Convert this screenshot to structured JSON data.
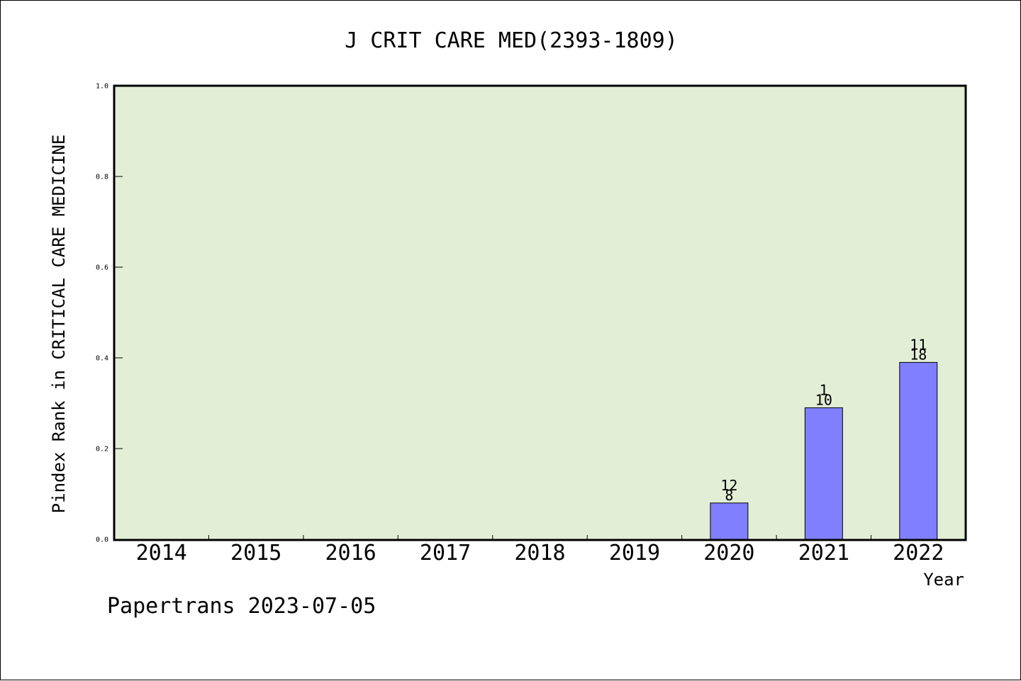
{
  "chart_data": {
    "type": "bar",
    "title": "J CRIT CARE MED(2393-1809)",
    "xlabel": "Year",
    "ylabel": "Pindex Rank in CRITICAL CARE MEDICINE",
    "ylim": [
      0,
      1.0
    ],
    "yticks": [
      "0.0",
      "0.2",
      "0.4",
      "0.6",
      "0.8",
      "1.0"
    ],
    "grid": false,
    "categories": [
      "2014",
      "2015",
      "2016",
      "2017",
      "2018",
      "2019",
      "2020",
      "2021",
      "2022"
    ],
    "values": [
      null,
      null,
      null,
      null,
      null,
      null,
      0.08,
      0.29,
      0.39
    ],
    "bar_labels_top": [
      "",
      "",
      "",
      "",
      "",
      "",
      "12",
      "1",
      "11"
    ],
    "bar_labels_bottom": [
      "",
      "",
      "",
      "",
      "",
      "",
      "8",
      "10",
      "18"
    ],
    "colors": {
      "plot_bg": "#e2efd6",
      "bar_fill": "#8080ff",
      "axis": "#000000"
    }
  },
  "footer": {
    "text": "Papertrans 2023-07-05"
  }
}
